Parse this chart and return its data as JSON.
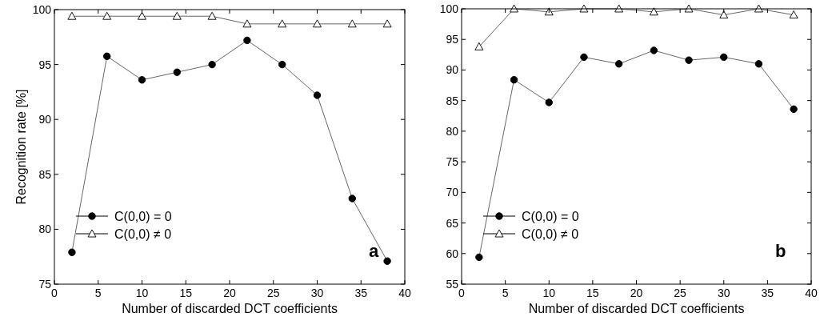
{
  "chart_data": [
    {
      "type": "line",
      "xlabel": "Number of discarded DCT coefficients",
      "ylabel": "Recognition rate [%]",
      "annotations": [
        "a"
      ],
      "legend": "bottom left",
      "xlim": [
        0,
        40
      ],
      "xticks": [
        0,
        5,
        10,
        15,
        20,
        25,
        30,
        35,
        40
      ],
      "ylim": [
        75,
        100
      ],
      "yticks": [
        75,
        80,
        85,
        90,
        95,
        100
      ],
      "x": [
        2,
        6,
        10,
        14,
        18,
        22,
        26,
        30,
        34,
        38
      ],
      "series": [
        {
          "name": "C(0,0) = 0",
          "color": "#000000",
          "marker": "circle",
          "values": [
            77.9,
            95.75,
            93.6,
            94.3,
            95.0,
            97.2,
            95.0,
            92.2,
            82.8,
            77.1
          ]
        },
        {
          "name": "C(0,0) ≠ 0",
          "color": "#000000",
          "marker": "triangle",
          "values": [
            99.4,
            99.4,
            99.4,
            99.4,
            99.4,
            98.7,
            98.7,
            98.7,
            98.7,
            98.7
          ]
        }
      ]
    },
    {
      "type": "line",
      "xlabel": "Number of discarded DCT coefficients",
      "annotations": [
        "b"
      ],
      "legend": "bottom left",
      "xlim": [
        0,
        40
      ],
      "xticks": [
        0,
        5,
        10,
        15,
        20,
        25,
        30,
        35,
        40
      ],
      "ylim": [
        55,
        100
      ],
      "yticks": [
        55,
        60,
        65,
        70,
        75,
        80,
        85,
        90,
        95,
        100
      ],
      "x": [
        2,
        6,
        10,
        14,
        18,
        22,
        26,
        30,
        34,
        38
      ],
      "series": [
        {
          "name": "C(0,0) = 0",
          "color": "#000000",
          "marker": "circle",
          "values": [
            59.4,
            88.4,
            84.7,
            92.1,
            91.0,
            93.2,
            91.6,
            92.1,
            91.0,
            83.6
          ]
        },
        {
          "name": "C(0,0) ≠ 0",
          "color": "#000000",
          "marker": "triangle",
          "values": [
            93.8,
            100,
            99.5,
            100,
            100,
            99.5,
            100,
            99.0,
            100,
            99.0
          ]
        }
      ]
    }
  ]
}
